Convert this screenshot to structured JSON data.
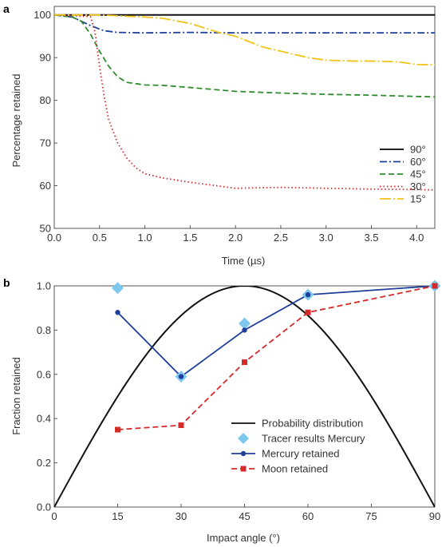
{
  "chart_data": [
    {
      "panel": "a",
      "type": "line",
      "xlabel": "Time (µs)",
      "ylabel": "Percentage retained",
      "xlim": [
        0.0,
        4.2
      ],
      "ylim": [
        50,
        102
      ],
      "xticks": [
        "0.0",
        "0.5",
        "1.0",
        "1.5",
        "2.0",
        "2.5",
        "3.0",
        "3.5",
        "4.0"
      ],
      "yticks": [
        "50",
        "60",
        "70",
        "80",
        "90",
        "100"
      ],
      "legend": "right",
      "grid": false,
      "series": [
        {
          "name": "90°",
          "color": "#000000",
          "dash": "solid",
          "x": [
            0,
            4.2
          ],
          "y": [
            100,
            100
          ]
        },
        {
          "name": "60°",
          "color": "#1f3f9a",
          "dash": "dashdot",
          "x": [
            0,
            0.2,
            0.4,
            0.55,
            0.7,
            1.0,
            1.5,
            2.0,
            2.5,
            3.0,
            3.5,
            4.0,
            4.2
          ],
          "y": [
            100,
            99.5,
            97.5,
            96.3,
            95.9,
            95.8,
            95.9,
            95.8,
            95.8,
            95.8,
            95.8,
            95.8,
            95.8
          ]
        },
        {
          "name": "45°",
          "color": "#2e8b2e",
          "dash": "dash",
          "x": [
            0,
            0.2,
            0.3,
            0.4,
            0.5,
            0.6,
            0.7,
            0.8,
            1.0,
            1.2,
            1.5,
            2.0,
            2.5,
            3.0,
            3.5,
            4.0,
            4.2
          ],
          "y": [
            100,
            99.5,
            98.5,
            95.5,
            91.5,
            88.0,
            85.5,
            84.2,
            83.6,
            83.5,
            83.0,
            82.1,
            81.7,
            81.4,
            81.2,
            80.9,
            80.8
          ]
        },
        {
          "name": "30°",
          "color": "#d42a2a",
          "dash": "dot",
          "x": [
            0,
            0.4,
            0.45,
            0.5,
            0.55,
            0.6,
            0.7,
            0.8,
            0.9,
            1.0,
            1.2,
            1.5,
            2.0,
            2.5,
            3.0,
            3.5,
            4.0,
            4.2
          ],
          "y": [
            100,
            99.6,
            96.0,
            88.0,
            81.0,
            75.5,
            70.0,
            66.5,
            64.2,
            62.8,
            61.8,
            60.8,
            59.4,
            59.6,
            59.4,
            59.2,
            59.1,
            59.0
          ]
        },
        {
          "name": "15°",
          "color": "#f2c41a",
          "dash": "longdash",
          "x": [
            0,
            0.5,
            1.0,
            1.2,
            1.5,
            1.8,
            2.0,
            2.3,
            2.5,
            2.8,
            3.0,
            3.3,
            3.5,
            3.8,
            4.0,
            4.2
          ],
          "y": [
            100,
            100,
            99.5,
            99.2,
            98.0,
            96.0,
            95.0,
            92.5,
            91.5,
            90.0,
            89.4,
            89.2,
            89.2,
            89.0,
            88.4,
            88.3
          ]
        }
      ]
    },
    {
      "panel": "b",
      "type": "line",
      "xlabel": "Impact angle (°)",
      "ylabel": "Fraction retained",
      "xlim": [
        0,
        90
      ],
      "ylim": [
        0.0,
        1.0
      ],
      "xticks": [
        "0",
        "15",
        "30",
        "45",
        "60",
        "75",
        "90"
      ],
      "yticks": [
        "0.0",
        "0.2",
        "0.4",
        "0.6",
        "0.8",
        "1.0"
      ],
      "legend": "lower-right",
      "grid": false,
      "series": [
        {
          "name": "Probability distribution",
          "color": "#111111",
          "dash": "solid",
          "function": "sin(2*angle)"
        },
        {
          "name": "Tracer results Mercury",
          "color": "#7ec8ef",
          "marker": "diamond",
          "x": [
            15,
            30,
            45,
            60,
            90
          ],
          "y": [
            0.99,
            0.59,
            0.83,
            0.96,
            1.0
          ]
        },
        {
          "name": "Mercury retained",
          "color": "#1f3f9a",
          "marker": "circle",
          "dash": "solid",
          "x": [
            15,
            30,
            45,
            60,
            90
          ],
          "y": [
            0.88,
            0.59,
            0.8,
            0.96,
            1.0
          ]
        },
        {
          "name": "Moon retained",
          "color": "#d42a2a",
          "marker": "square",
          "dash": "dash",
          "x": [
            15,
            30,
            45,
            60,
            90
          ],
          "y": [
            0.35,
            0.37,
            0.655,
            0.88,
            1.0
          ]
        }
      ]
    }
  ]
}
